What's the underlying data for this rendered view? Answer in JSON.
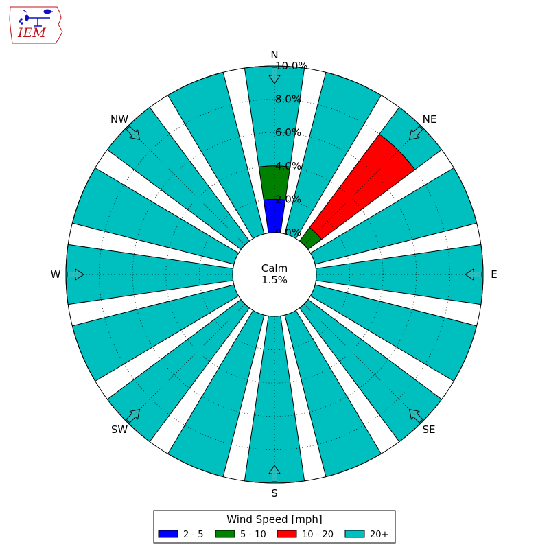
{
  "logo": {
    "text": "IEM"
  },
  "chart_data": {
    "type": "polar-bar",
    "directions": [
      "N",
      "NE",
      "E",
      "SE",
      "S",
      "SW",
      "W",
      "NW"
    ],
    "radial_ticks": [
      "0.0%",
      "2.0%",
      "4.0%",
      "6.0%",
      "8.0%",
      "10.0%"
    ],
    "rlim": [
      0,
      10
    ],
    "calm_label": "Calm",
    "calm_value": "1.5%",
    "legend_title": "Wind Speed [mph]",
    "speed_bins": [
      {
        "label": "2 - 5",
        "color": "#0000ff"
      },
      {
        "label": "5 - 10",
        "color": "#008000"
      },
      {
        "label": "10 - 20",
        "color": "#ff0000"
      },
      {
        "label": "20+",
        "color": "#00bfbf"
      }
    ],
    "bars": [
      {
        "direction": "N",
        "cumulative": [
          2.0,
          4.0,
          4.0,
          10.0
        ]
      },
      {
        "direction": "NNE",
        "cumulative": [
          0,
          0,
          0,
          10.0
        ]
      },
      {
        "direction": "NE",
        "cumulative": [
          0,
          1.0,
          8.0,
          10.0
        ]
      },
      {
        "direction": "ENE",
        "cumulative": [
          0,
          0,
          0,
          10.0
        ]
      },
      {
        "direction": "E",
        "cumulative": [
          0,
          0,
          0,
          10.0
        ]
      },
      {
        "direction": "ESE",
        "cumulative": [
          0,
          0,
          0,
          10.0
        ]
      },
      {
        "direction": "SE",
        "cumulative": [
          0,
          0,
          0,
          10.0
        ]
      },
      {
        "direction": "SSE",
        "cumulative": [
          0,
          0,
          0,
          10.0
        ]
      },
      {
        "direction": "S",
        "cumulative": [
          0,
          0,
          0,
          10.0
        ]
      },
      {
        "direction": "SSW",
        "cumulative": [
          0,
          0,
          0,
          10.0
        ]
      },
      {
        "direction": "SW",
        "cumulative": [
          0,
          0,
          0,
          10.0
        ]
      },
      {
        "direction": "WSW",
        "cumulative": [
          0,
          0,
          0,
          10.0
        ]
      },
      {
        "direction": "W",
        "cumulative": [
          0,
          0,
          0,
          10.0
        ]
      },
      {
        "direction": "WNW",
        "cumulative": [
          0,
          0,
          0,
          10.0
        ]
      },
      {
        "direction": "NW",
        "cumulative": [
          0,
          0,
          0,
          10.0
        ]
      },
      {
        "direction": "NNW",
        "cumulative": [
          0,
          0,
          0,
          10.0
        ]
      }
    ],
    "bar_centers_deg": [
      0,
      22.5,
      45,
      67.5,
      90,
      112.5,
      135,
      157.5,
      180,
      202.5,
      225,
      247.5,
      270,
      292.5,
      315,
      337.5
    ]
  }
}
